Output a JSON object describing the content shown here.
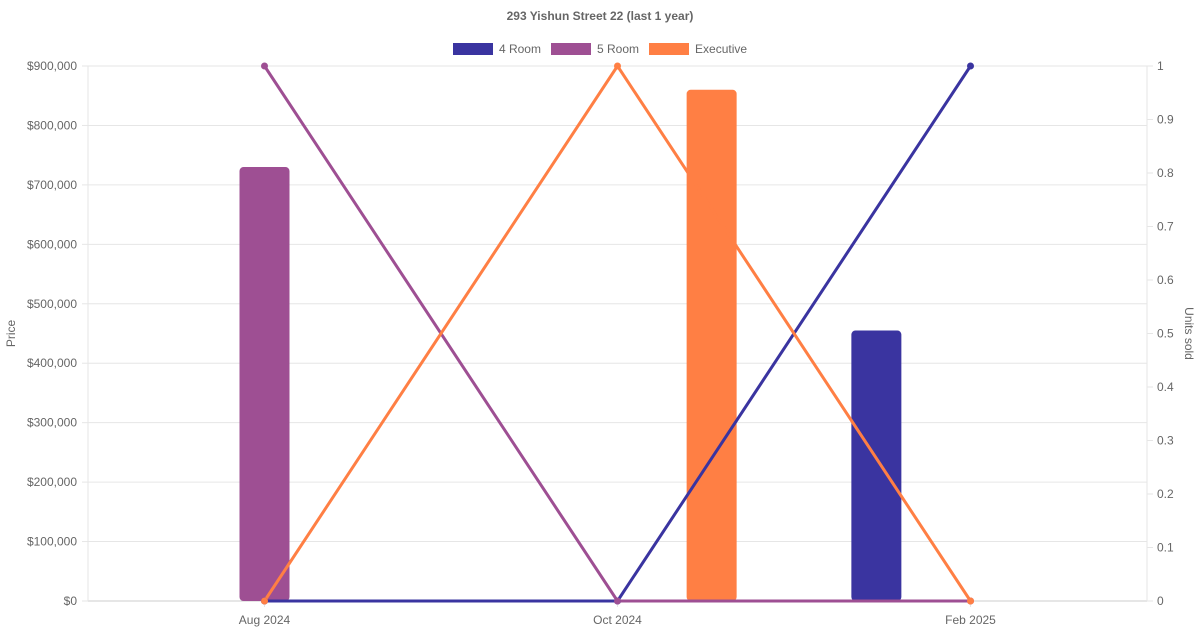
{
  "chart_data": {
    "type": "bar",
    "title": "293 Yishun Street 22 (last 1 year)",
    "categories": [
      "Aug 2024",
      "Oct 2024",
      "Feb 2025"
    ],
    "y_left": {
      "label": "Price",
      "min": 0,
      "max": 900000,
      "step": 100000,
      "ticks": [
        "$0",
        "$100,000",
        "$200,000",
        "$300,000",
        "$400,000",
        "$500,000",
        "$600,000",
        "$700,000",
        "$800,000",
        "$900,000"
      ]
    },
    "y_right": {
      "label": "Units sold",
      "min": 0,
      "max": 1,
      "step": 0.1,
      "ticks": [
        "0",
        "0.1",
        "0.2",
        "0.3",
        "0.4",
        "0.5",
        "0.6",
        "0.7",
        "0.8",
        "0.9",
        "1"
      ]
    },
    "grid": true,
    "legend_position": "top",
    "series": [
      {
        "name": "4 Room",
        "color": "#3a34a0",
        "price": [
          null,
          null,
          455000
        ],
        "units": [
          0,
          0,
          1
        ]
      },
      {
        "name": "5 Room",
        "color": "#9e4f93",
        "price": [
          730000,
          null,
          null
        ],
        "units": [
          1,
          0,
          0
        ]
      },
      {
        "name": "Executive",
        "color": "#ff7f44",
        "price": [
          null,
          860000,
          null
        ],
        "units": [
          0,
          1,
          0
        ]
      }
    ]
  }
}
